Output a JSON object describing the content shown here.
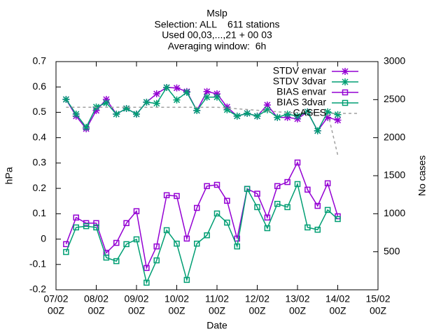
{
  "chart_data": {
    "type": "line",
    "title": [
      "Mslp",
      "Selection: ALL    611 stations",
      "Used 00,03,...,21 + 00 03",
      "Averaging window:  6h"
    ],
    "xlabel": "Date",
    "ylabel": "hPa",
    "y2label": "No cases",
    "x": [
      6,
      12,
      18,
      24,
      30,
      36,
      42,
      48,
      54,
      60,
      66,
      72,
      78,
      84,
      90,
      96,
      102,
      108,
      114,
      120,
      126,
      132,
      138,
      144,
      150,
      156,
      162,
      168
    ],
    "xlim": [
      0,
      192
    ],
    "xticks": [
      {
        "value": 0,
        "label": [
          "07/02",
          "00Z"
        ]
      },
      {
        "value": 24,
        "label": [
          "08/02",
          "00Z"
        ]
      },
      {
        "value": 48,
        "label": [
          "09/02",
          "00Z"
        ]
      },
      {
        "value": 72,
        "label": [
          "10/02",
          "00Z"
        ]
      },
      {
        "value": 96,
        "label": [
          "11/02",
          "00Z"
        ]
      },
      {
        "value": 120,
        "label": [
          "12/02",
          "00Z"
        ]
      },
      {
        "value": 144,
        "label": [
          "13/02",
          "00Z"
        ]
      },
      {
        "value": 168,
        "label": [
          "14/02",
          "00Z"
        ]
      },
      {
        "value": 192,
        "label": [
          "15/02",
          "00Z"
        ]
      }
    ],
    "ylim": [
      -0.2,
      0.7
    ],
    "yticks": [
      -0.2,
      -0.1,
      0,
      0.1,
      0.2,
      0.3,
      0.4,
      0.5,
      0.6,
      0.7
    ],
    "y2lim": [
      0,
      3000
    ],
    "y2ticks": [
      500,
      1000,
      1500,
      2000,
      2500,
      3000
    ],
    "series": [
      {
        "name": "STDV envar",
        "color": "#9400d3",
        "marker": "star",
        "values": [
          0.551,
          0.485,
          0.435,
          0.507,
          0.551,
          0.493,
          0.515,
          0.493,
          0.54,
          0.573,
          0.598,
          0.596,
          0.582,
          0.507,
          0.582,
          0.573,
          0.521,
          0.485,
          0.496,
          0.485,
          0.529,
          0.48,
          0.48,
          0.474,
          0.502,
          0.427,
          0.48,
          0.469
        ]
      },
      {
        "name": "STDV 3dvar",
        "color": "#009e73",
        "marker": "star",
        "values": [
          0.551,
          0.493,
          0.441,
          0.521,
          0.537,
          0.493,
          0.515,
          0.493,
          0.54,
          0.535,
          0.598,
          0.549,
          0.579,
          0.507,
          0.56,
          0.56,
          0.51,
          0.485,
          0.496,
          0.485,
          0.51,
          0.48,
          0.493,
          0.485,
          0.502,
          0.427,
          0.502,
          0.491
        ]
      },
      {
        "name": "BIAS envar",
        "color": "#9400d3",
        "marker": "square",
        "values": [
          -0.02,
          0.085,
          0.063,
          0.063,
          -0.054,
          -0.015,
          0.063,
          0.11,
          -0.114,
          -0.029,
          0.173,
          0.17,
          0.002,
          0.123,
          0.209,
          0.214,
          0.151,
          0.002,
          0.198,
          0.179,
          0.085,
          0.209,
          0.225,
          0.302,
          0.195,
          0.131,
          0.22,
          0.09
        ]
      },
      {
        "name": "BIAS 3dvar",
        "color": "#009e73",
        "marker": "square",
        "values": [
          -0.051,
          0.046,
          0.051,
          0.046,
          -0.073,
          -0.087,
          -0.02,
          -0.001,
          -0.172,
          -0.084,
          0.035,
          -0.018,
          -0.161,
          -0.018,
          0.015,
          0.101,
          0.065,
          -0.029,
          0.198,
          0.126,
          0.043,
          0.139,
          0.126,
          0.217,
          0.046,
          0.037,
          0.115,
          0.079
        ]
      },
      {
        "name": "CASES",
        "color": "#a0a0a0",
        "marker": "none",
        "axis": "y2",
        "dashed": true,
        "values": [
          2400,
          2400,
          2400,
          2400,
          2400,
          2400,
          2400,
          2400,
          2400,
          2400,
          2400,
          2400,
          2400,
          2400,
          2400,
          2400,
          2390,
          2380,
          2370,
          2360,
          2350,
          2340,
          2330,
          2330,
          2330,
          2330,
          2330,
          1770
        ]
      }
    ],
    "legend": "top-right"
  }
}
